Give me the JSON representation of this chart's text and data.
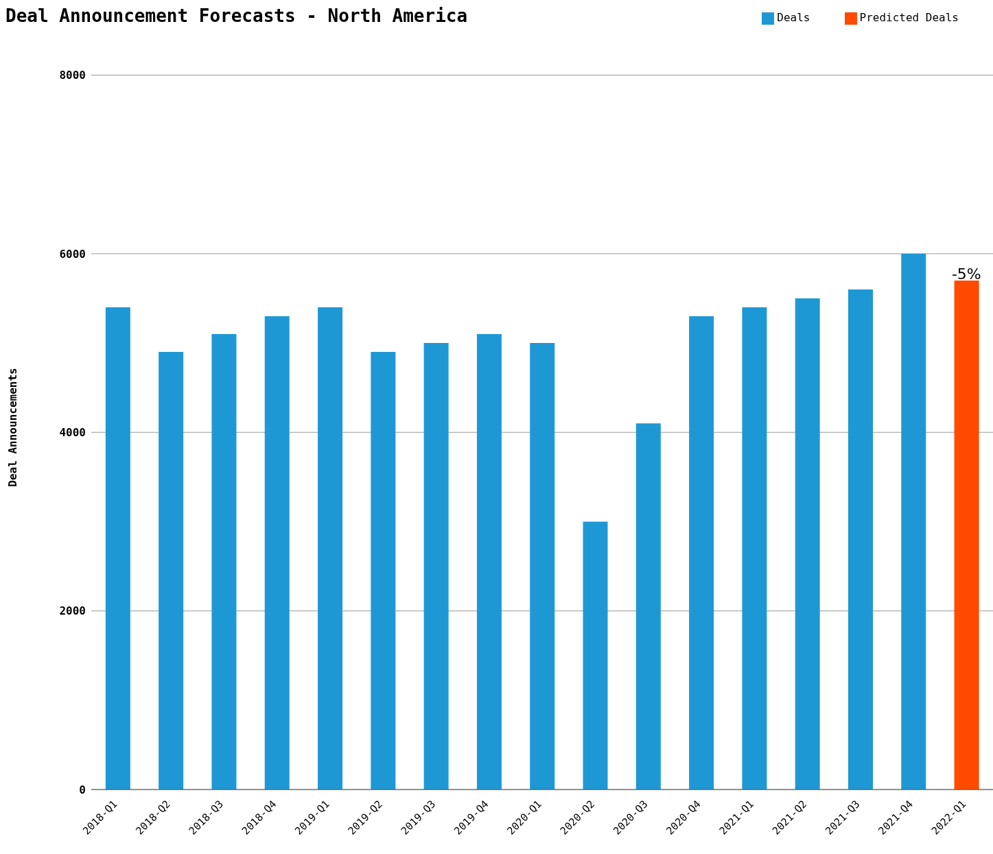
{
  "chart_data": {
    "type": "bar",
    "title": "Deal Announcement Forecasts - North America",
    "ylabel": "Deal Announcements",
    "categories": [
      "2018-Q1",
      "2018-Q2",
      "2018-Q3",
      "2018-Q4",
      "2019-Q1",
      "2019-Q2",
      "2019-Q3",
      "2019-Q4",
      "2020-Q1",
      "2020-Q2",
      "2020-Q3",
      "2020-Q4",
      "2021-Q1",
      "2021-Q2",
      "2021-Q3",
      "2021-Q4",
      "2022-Q1"
    ],
    "series": [
      {
        "name": "Deals",
        "color": "#1e98d5",
        "values": [
          5400,
          4900,
          5100,
          5300,
          5400,
          4900,
          5000,
          5100,
          5000,
          3000,
          4100,
          5300,
          5400,
          5500,
          5600,
          6000,
          null
        ]
      },
      {
        "name": "Predicted Deals",
        "color": "#ff4a00",
        "values": [
          null,
          null,
          null,
          null,
          null,
          null,
          null,
          null,
          null,
          null,
          null,
          null,
          null,
          null,
          null,
          null,
          5700
        ]
      }
    ],
    "stacked": true,
    "ylim": [
      0,
      8000
    ],
    "yticks": [
      0,
      2000,
      4000,
      6000,
      8000
    ],
    "grid": "y",
    "legend": "top right",
    "annotations": [
      {
        "text": "-5%",
        "x": "2022-Q1",
        "y": 5700
      }
    ]
  }
}
